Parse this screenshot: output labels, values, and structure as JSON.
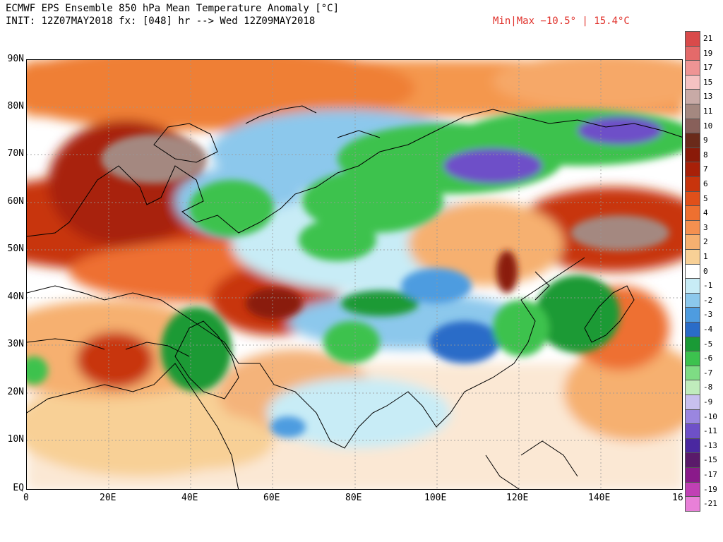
{
  "header": {
    "title": "ECMWF EPS Ensemble 850 hPa Mean Temperature Anomaly [°C]",
    "init": "INIT: 12Z07MAY2018 fx: [048] hr --> Wed 12Z09MAY2018",
    "minmax": "Min|Max −10.5° | 15.4°C"
  },
  "axes": {
    "lat_labels": [
      "90N",
      "80N",
      "70N",
      "60N",
      "50N",
      "40N",
      "30N",
      "20N",
      "10N",
      "EQ"
    ],
    "lon_labels": [
      "0",
      "20E",
      "40E",
      "60E",
      "80E",
      "100E",
      "120E",
      "140E",
      "16"
    ]
  },
  "legend": {
    "labels": [
      "21",
      "19",
      "17",
      "15",
      "13",
      "11",
      "10",
      "9",
      "8",
      "7",
      "6",
      "5",
      "4",
      "3",
      "2",
      "1",
      "0",
      "-1",
      "-2",
      "-3",
      "-4",
      "-5",
      "-6",
      "-7",
      "-8",
      "-9",
      "-10",
      "-11",
      "-13",
      "-15",
      "-17",
      "-19",
      "-21"
    ],
    "colors": [
      "#d94a4a",
      "#e46a6a",
      "#ee9494",
      "#f5c2c2",
      "#c8aaa6",
      "#a48880",
      "#88605a",
      "#6a2a1a",
      "#8a1a08",
      "#a82008",
      "#c8340c",
      "#e0501a",
      "#ee7030",
      "#f49050",
      "#f6b070",
      "#f8d096",
      "#ffffff",
      "#c8ecf6",
      "#8cc8ec",
      "#4e9ce0",
      "#2a6cc8",
      "#1a9a36",
      "#3cc24e",
      "#7edc84",
      "#c0ecbc",
      "#c8c0ee",
      "#9a86e0",
      "#6e50c8",
      "#4a28a0",
      "#5a1a6a",
      "#8a1a8a",
      "#c040b4",
      "#e880d8"
    ]
  },
  "map": {
    "description_none": ""
  }
}
